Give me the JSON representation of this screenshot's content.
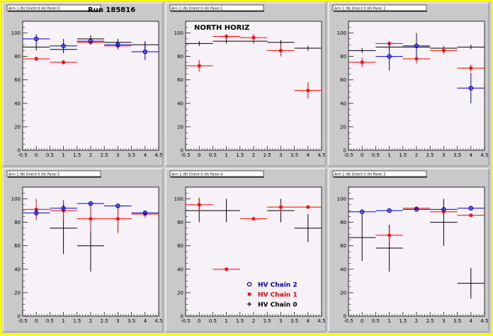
{
  "header": {
    "run_label": "Run 185816"
  },
  "legend": {
    "entries": [
      {
        "label": "HV Chain 2",
        "color": "#0000cc",
        "marker": "circle"
      },
      {
        "label": "HV Chain 1",
        "color": "#ff0000",
        "marker": "star"
      },
      {
        "label": "HV Chain 0",
        "color": "#000000",
        "marker": "plus"
      }
    ]
  },
  "colors": {
    "chain2": "#0000cc",
    "chain1": "#ff0000",
    "chain0": "#000000",
    "frame_fill": "#c9c9c9",
    "plot_fill": "#f7f2f7",
    "outer_border": "#ffff00"
  },
  "chart_data": [
    {
      "type": "scatter",
      "title": "Arm 1 (N) Orient 0 (H) Panel 0",
      "annotation": "",
      "xlim": [
        -0.5,
        4.5
      ],
      "ylim": [
        0,
        110
      ],
      "xticks": [
        "-0.5",
        "0",
        "0.5",
        "1",
        "1.5",
        "2",
        "2.5",
        "3",
        "3.5",
        "4",
        "4.5"
      ],
      "yticks": [
        "0",
        "20",
        "40",
        "60",
        "80",
        "100"
      ],
      "series": [
        {
          "name": "HV Chain 2",
          "points": [
            [
              0,
              95,
              4
            ],
            [
              1,
              89,
              6
            ],
            [
              2,
              93,
              0
            ],
            [
              3,
              90,
              4
            ],
            [
              4,
              84,
              7
            ]
          ]
        },
        {
          "name": "HV Chain 1",
          "points": [
            [
              0,
              78,
              2
            ],
            [
              1,
              75,
              2
            ],
            [
              2,
              92,
              2
            ],
            [
              3,
              89,
              2
            ]
          ]
        },
        {
          "name": "HV Chain 0",
          "points": [
            [
              0,
              88,
              3
            ],
            [
              1,
              86,
              3
            ],
            [
              2,
              95,
              3
            ],
            [
              3,
              92,
              3
            ],
            [
              4,
              90,
              3
            ]
          ]
        }
      ]
    },
    {
      "type": "scatter",
      "title": "Arm 1 (N) Orient 0 (H) Panel 1",
      "annotation": "NORTH HORIZ",
      "xlim": [
        -0.5,
        4.5
      ],
      "ylim": [
        0,
        110
      ],
      "xticks": [
        "-0.5",
        "0",
        "0.5",
        "1",
        "1.5",
        "2",
        "2.5",
        "3",
        "3.5",
        "4",
        "4.5"
      ],
      "yticks": [
        "0",
        "20",
        "40",
        "60",
        "80",
        "100"
      ],
      "series": [
        {
          "name": "HV Chain 2",
          "points": []
        },
        {
          "name": "HV Chain 1",
          "points": [
            [
              0,
              72,
              5
            ],
            [
              1,
              97,
              2
            ],
            [
              2,
              96,
              3
            ],
            [
              3,
              85,
              5
            ],
            [
              4,
              51,
              7
            ]
          ]
        },
        {
          "name": "HV Chain 0",
          "points": [
            [
              0,
              91,
              2
            ],
            [
              1,
              93,
              2
            ],
            [
              2,
              93,
              2
            ],
            [
              3,
              92,
              2
            ],
            [
              4,
              87,
              2
            ]
          ]
        }
      ]
    },
    {
      "type": "scatter",
      "title": "Arm 1 (N) Orient 0 (H) Panel 2",
      "annotation": "",
      "xlim": [
        -0.5,
        4.5
      ],
      "ylim": [
        0,
        110
      ],
      "xticks": [
        "-0.5",
        "0",
        "0.5",
        "1",
        "1.5",
        "2",
        "2.5",
        "3",
        "3.5",
        "4",
        "4.5"
      ],
      "yticks": [
        "0",
        "20",
        "40",
        "60",
        "80",
        "100"
      ],
      "series": [
        {
          "name": "HV Chain 2",
          "points": [
            [
              1,
              80,
              12
            ],
            [
              2,
              89,
              11
            ],
            [
              4,
              53,
              13
            ]
          ]
        },
        {
          "name": "HV Chain 1",
          "points": [
            [
              0,
              75,
              4
            ],
            [
              1,
              91,
              2
            ],
            [
              2,
              78,
              4
            ],
            [
              3,
              85,
              3
            ],
            [
              4,
              70,
              3
            ]
          ]
        },
        {
          "name": "HV Chain 0",
          "points": [
            [
              0,
              85,
              2
            ],
            [
              1,
              88,
              2
            ],
            [
              2,
              88,
              2
            ],
            [
              3,
              87,
              2
            ],
            [
              4,
              88,
              2
            ]
          ]
        }
      ]
    },
    {
      "type": "scatter",
      "title": "Arm 1 (N) Orient 0 (H) Panel 5",
      "annotation": "",
      "xlim": [
        -0.5,
        4.5
      ],
      "ylim": [
        0,
        110
      ],
      "xticks": [
        "-0.5",
        "0",
        "0.5",
        "1",
        "1.5",
        "2",
        "2.5",
        "3",
        "3.5",
        "4",
        "4.5"
      ],
      "yticks": [
        "0",
        "20",
        "40",
        "60",
        "80",
        "100"
      ],
      "series": [
        {
          "name": "HV Chain 2",
          "points": [
            [
              0,
              88,
              3
            ],
            [
              1,
              92,
              3
            ],
            [
              2,
              96,
              2
            ],
            [
              3,
              94,
              2
            ],
            [
              4,
              88,
              2
            ]
          ]
        },
        {
          "name": "HV Chain 1",
          "points": [
            [
              0,
              91,
              9
            ],
            [
              1,
              90,
              9
            ],
            [
              2,
              83,
              12
            ],
            [
              3,
              83,
              12
            ],
            [
              4,
              87,
              3
            ]
          ]
        },
        {
          "name": "HV Chain 0",
          "points": [
            [
              1,
              75,
              22
            ],
            [
              2,
              60,
              22
            ]
          ]
        }
      ]
    },
    {
      "type": "scatter",
      "title": "Arm 1 (N) Orient 0 (H) Panel 4",
      "annotation": "",
      "xlim": [
        -0.5,
        4.5
      ],
      "ylim": [
        0,
        110
      ],
      "xticks": [
        "-0.5",
        "0",
        "0.5",
        "1",
        "1.5",
        "2",
        "2.5",
        "3",
        "3.5",
        "4",
        "4.5"
      ],
      "yticks": [
        "0",
        "20",
        "40",
        "60",
        "80",
        "100"
      ],
      "series": [
        {
          "name": "HV Chain 2",
          "points": []
        },
        {
          "name": "HV Chain 1",
          "points": [
            [
              0,
              95,
              6
            ],
            [
              1,
              40,
              1
            ],
            [
              2,
              83,
              1
            ],
            [
              3,
              93,
              5
            ],
            [
              4,
              93,
              1
            ]
          ]
        },
        {
          "name": "HV Chain 0",
          "points": [
            [
              0,
              90,
              10
            ],
            [
              1,
              90,
              10
            ],
            [
              3,
              90,
              10
            ],
            [
              4,
              75,
              12
            ]
          ]
        }
      ]
    },
    {
      "type": "scatter",
      "title": "Arm 1 (N) Orient 0 (H) Panel 3",
      "annotation": "",
      "xlim": [
        -0.5,
        4.5
      ],
      "ylim": [
        0,
        110
      ],
      "xticks": [
        "-0.5",
        "0",
        "0.5",
        "1",
        "1.5",
        "2",
        "2.5",
        "3",
        "3.5",
        "4",
        "4.5"
      ],
      "yticks": [
        "0",
        "20",
        "40",
        "60",
        "80",
        "100"
      ],
      "series": [
        {
          "name": "HV Chain 2",
          "points": [
            [
              0,
              89,
              1
            ],
            [
              1,
              90,
              1
            ],
            [
              2,
              91,
              1
            ],
            [
              3,
              91,
              1
            ],
            [
              4,
              92,
              1
            ]
          ]
        },
        {
          "name": "HV Chain 1",
          "points": [
            [
              1,
              69,
              6
            ],
            [
              2,
              92,
              1
            ],
            [
              3,
              89,
              1
            ],
            [
              4,
              86,
              1
            ]
          ]
        },
        {
          "name": "HV Chain 0",
          "points": [
            [
              0,
              67,
              20
            ],
            [
              1,
              58,
              20
            ],
            [
              3,
              80,
              20
            ],
            [
              4,
              28,
              13
            ]
          ]
        }
      ]
    }
  ]
}
